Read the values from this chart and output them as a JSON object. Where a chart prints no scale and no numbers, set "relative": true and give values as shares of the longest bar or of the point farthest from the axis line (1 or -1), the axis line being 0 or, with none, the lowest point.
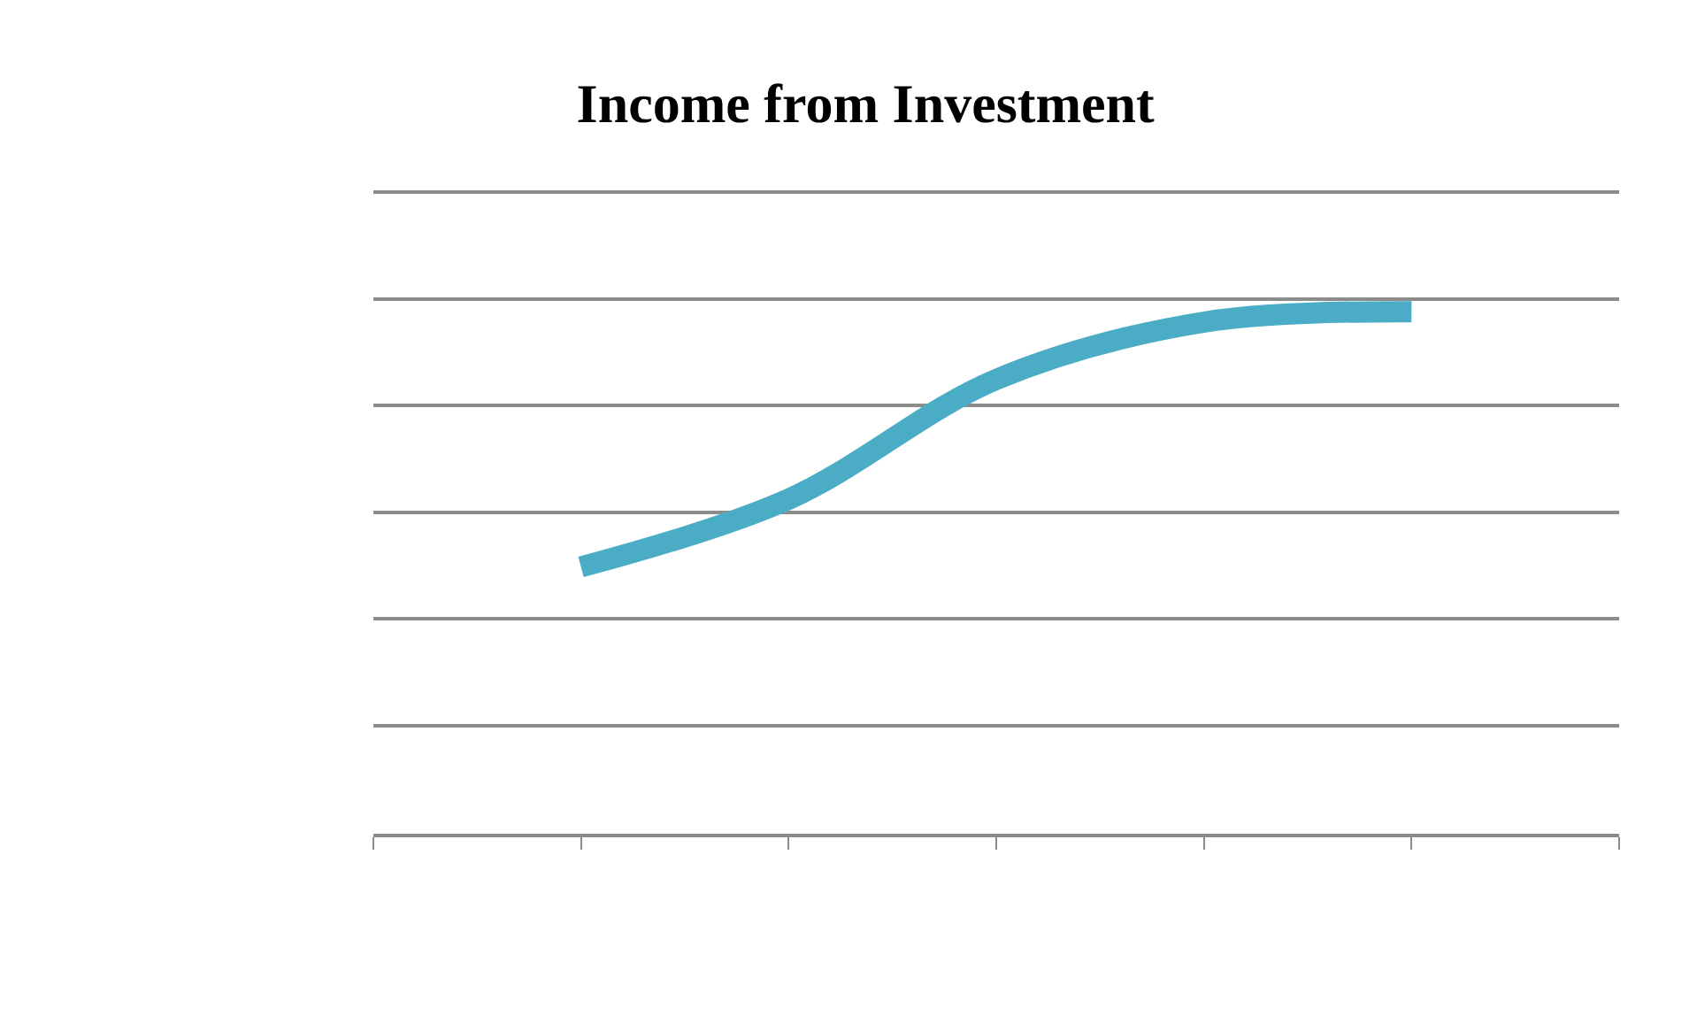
{
  "chart_data": {
    "type": "line",
    "title": "Income from Investment",
    "relative": true,
    "grid": "y",
    "marker": "none",
    "line_style": "solid",
    "categories": [
      null,
      null,
      null,
      null,
      null
    ],
    "series": [
      {
        "color": "#4bacc6",
        "values": [
          0.51,
          0.64,
          0.87,
          0.98,
          1.0
        ]
      }
    ]
  }
}
